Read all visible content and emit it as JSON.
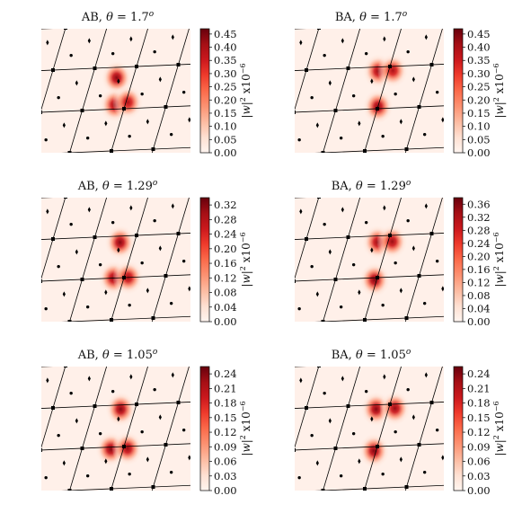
{
  "colors": {
    "colormap": [
      "#fff5f0",
      "#fee0d2",
      "#fcbba1",
      "#fc9272",
      "#fb6a4a",
      "#ef3b2c",
      "#cb181d",
      "#a50f15",
      "#67000d"
    ],
    "plot_background": "#fff0e9",
    "lattice_line": "#000000"
  },
  "chart_data": [
    {
      "type": "heatmap",
      "title_text": "AB, ",
      "theta_symbol": "θ",
      "title_value": " = 1.7",
      "title_sup": "o",
      "colorbar": {
        "label": "|w|",
        "label_sup": "2",
        "label_tail": " x10",
        "label_exp": "−6",
        "ticks": [
          "0.00",
          "0.05",
          "0.10",
          "0.15",
          "0.20",
          "0.25",
          "0.30",
          "0.35",
          "0.40",
          "0.45"
        ],
        "range": [
          0,
          0.47
        ]
      },
      "peaks": [
        {
          "u": 1.6,
          "v": 1.75,
          "value": 0.44
        },
        {
          "u": 1.75,
          "v": 1.1,
          "value": 0.42
        },
        {
          "u": 2.05,
          "v": 1.15,
          "value": 0.4
        }
      ]
    },
    {
      "type": "heatmap",
      "title_text": "BA, ",
      "theta_symbol": "θ",
      "title_value": " = 1.7",
      "title_sup": "o",
      "colorbar": {
        "label": "|w|",
        "label_sup": "2",
        "label_tail": " x10",
        "label_exp": "−6",
        "ticks": [
          "0.00",
          "0.05",
          "0.10",
          "0.15",
          "0.20",
          "0.25",
          "0.30",
          "0.35",
          "0.40",
          "0.45"
        ],
        "range": [
          0,
          0.47
        ]
      },
      "peaks": [
        {
          "u": 2.0,
          "v": 1.05,
          "value": 0.44
        },
        {
          "u": 1.75,
          "v": 1.9,
          "value": 0.42
        },
        {
          "u": 2.1,
          "v": 1.9,
          "value": 0.4
        }
      ]
    },
    {
      "type": "heatmap",
      "title_text": "AB, ",
      "theta_symbol": "θ",
      "title_value": " = 1.29",
      "title_sup": "o",
      "colorbar": {
        "label": "|w|",
        "label_sup": "2",
        "label_tail": " x10",
        "label_exp": "−6",
        "ticks": [
          "0.00",
          "0.04",
          "0.08",
          "0.12",
          "0.16",
          "0.20",
          "0.24",
          "0.28",
          "0.32"
        ],
        "range": [
          0,
          0.34
        ]
      },
      "peaks": [
        {
          "u": 1.65,
          "v": 1.85,
          "value": 0.32
        },
        {
          "u": 1.75,
          "v": 1.0,
          "value": 0.31
        },
        {
          "u": 2.1,
          "v": 1.0,
          "value": 0.3
        }
      ]
    },
    {
      "type": "heatmap",
      "title_text": "BA, ",
      "theta_symbol": "θ",
      "title_value": " = 1.29",
      "title_sup": "o",
      "colorbar": {
        "label": "|w|",
        "label_sup": "2",
        "label_tail": " x10",
        "label_exp": "−6",
        "ticks": [
          "0.00",
          "0.04",
          "0.08",
          "0.12",
          "0.16",
          "0.20",
          "0.24",
          "0.28",
          "0.32",
          "0.36"
        ],
        "range": [
          0,
          0.38
        ]
      },
      "peaks": [
        {
          "u": 1.95,
          "v": 0.95,
          "value": 0.36
        },
        {
          "u": 1.75,
          "v": 1.85,
          "value": 0.34
        },
        {
          "u": 2.1,
          "v": 1.85,
          "value": 0.34
        }
      ]
    },
    {
      "type": "heatmap",
      "title_text": "AB, ",
      "theta_symbol": "θ",
      "title_value": " = 1.05",
      "title_sup": "o",
      "colorbar": {
        "label": "|w|",
        "label_sup": "2",
        "label_tail": " x10",
        "label_exp": "−6",
        "ticks": [
          "0.00",
          "0.03",
          "0.06",
          "0.09",
          "0.12",
          "0.15",
          "0.18",
          "0.21",
          "0.24"
        ],
        "range": [
          0,
          0.255
        ]
      },
      "peaks": [
        {
          "u": 1.65,
          "v": 1.9,
          "value": 0.24
        },
        {
          "u": 1.7,
          "v": 0.95,
          "value": 0.24
        },
        {
          "u": 2.1,
          "v": 0.95,
          "value": 0.23
        }
      ]
    },
    {
      "type": "heatmap",
      "title_text": "BA, ",
      "theta_symbol": "θ",
      "title_value": " = 1.05",
      "title_sup": "o",
      "colorbar": {
        "label": "|w|",
        "label_sup": "2",
        "label_tail": " x10",
        "label_exp": "−6",
        "ticks": [
          "0.00",
          "0.03",
          "0.06",
          "0.09",
          "0.12",
          "0.15",
          "0.18",
          "0.21",
          "0.24"
        ],
        "range": [
          0,
          0.255
        ]
      },
      "peaks": [
        {
          "u": 1.95,
          "v": 0.9,
          "value": 0.24
        },
        {
          "u": 1.7,
          "v": 1.9,
          "value": 0.24
        },
        {
          "u": 2.15,
          "v": 1.9,
          "value": 0.23
        }
      ]
    }
  ]
}
